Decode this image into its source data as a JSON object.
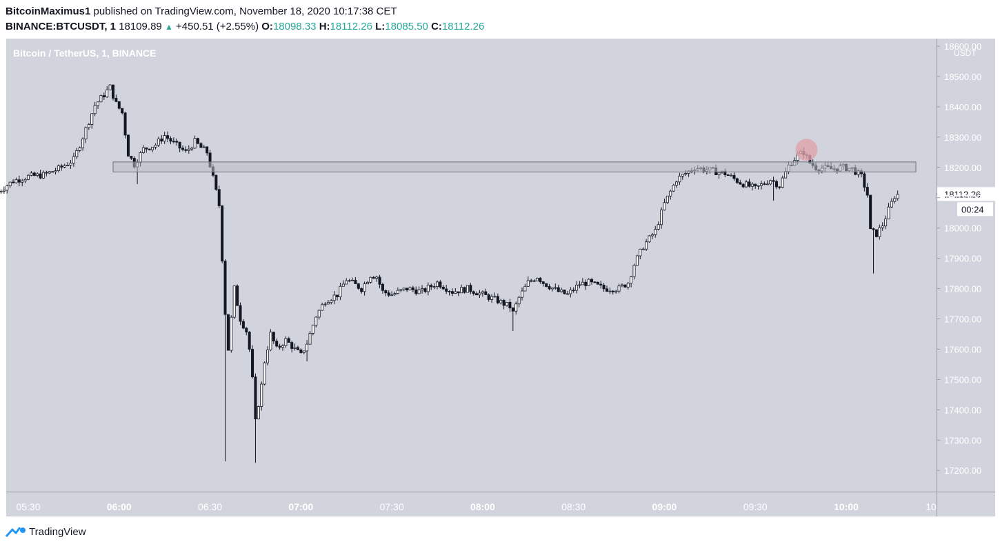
{
  "header": {
    "author": "BitcoinMaximus1",
    "published_text": "published on TradingView.com, November 18, 2020 10:17:38 CET",
    "symbol": "BINANCE:BTCUSDT, 1",
    "last": "18109.89",
    "change": "+450.51 (+2.55%)",
    "o_label": "O:",
    "o_value": "18098.33",
    "h_label": "H:",
    "h_value": "18112.26",
    "l_label": "L:",
    "l_value": "18085.50",
    "c_label": "C:",
    "c_value": "18112.26"
  },
  "footer": {
    "brand": "TradingView"
  },
  "colors": {
    "plot_bg": "#d1d4dc",
    "candle": "#131722",
    "zone_fill": "#b9bcc4",
    "marker": "#e0a3ad"
  },
  "chart_data": {
    "type": "candlestick",
    "title": "Bitcoin / TetherUS, 1, BINANCE",
    "y_unit": "USDT",
    "y_ticks": [
      "17200.00",
      "17300.00",
      "17400.00",
      "17500.00",
      "17600.00",
      "17700.00",
      "17800.00",
      "17900.00",
      "18000.00",
      "18100.00",
      "18200.00",
      "18300.00",
      "18400.00",
      "18500.00",
      "18600.00"
    ],
    "x_ticks": [
      "05:30",
      "06:00",
      "06:30",
      "07:00",
      "07:30",
      "08:00",
      "08:30",
      "09:00",
      "09:30",
      "10:00",
      "10"
    ],
    "ylim": [
      17130,
      18625
    ],
    "current_price": "18112.26",
    "countdown": "00:24",
    "zone": {
      "from_time": "05:58",
      "to_time": "10:23",
      "low": 18185,
      "high": 18218
    },
    "marker": {
      "time": "09:46",
      "price": 18258
    },
    "anchors": [
      [
        "05:20",
        18120
      ],
      [
        "05:25",
        18155
      ],
      [
        "05:30",
        18170
      ],
      [
        "05:35",
        18175
      ],
      [
        "05:40",
        18195
      ],
      [
        "05:45",
        18225
      ],
      [
        "05:48",
        18300
      ],
      [
        "05:52",
        18405
      ],
      [
        "05:55",
        18440
      ],
      [
        "05:57",
        18465
      ],
      [
        "05:59",
        18410
      ],
      [
        "06:01",
        18380
      ],
      [
        "06:03",
        18245
      ],
      [
        "06:05",
        18210
      ],
      [
        "06:08",
        18260
      ],
      [
        "06:12",
        18275
      ],
      [
        "06:15",
        18305
      ],
      [
        "06:18",
        18280
      ],
      [
        "06:22",
        18250
      ],
      [
        "06:25",
        18285
      ],
      [
        "06:27",
        18265
      ],
      [
        "06:29",
        18250
      ],
      [
        "06:31",
        18165
      ],
      [
        "06:33",
        18075
      ],
      [
        "06:34",
        17900
      ],
      [
        "06:35",
        17720
      ],
      [
        "06:36",
        17600
      ],
      [
        "06:38",
        17800
      ],
      [
        "06:40",
        17700
      ],
      [
        "06:42",
        17660
      ],
      [
        "06:43",
        17600
      ],
      [
        "06:44",
        17500
      ],
      [
        "06:45",
        17360
      ],
      [
        "06:47",
        17480
      ],
      [
        "06:48",
        17560
      ],
      [
        "06:50",
        17650
      ],
      [
        "06:52",
        17600
      ],
      [
        "06:55",
        17630
      ],
      [
        "06:58",
        17600
      ],
      [
        "07:00",
        17580
      ],
      [
        "07:02",
        17620
      ],
      [
        "07:05",
        17710
      ],
      [
        "07:08",
        17760
      ],
      [
        "07:12",
        17780
      ],
      [
        "07:15",
        17830
      ],
      [
        "07:20",
        17800
      ],
      [
        "07:23",
        17845
      ],
      [
        "07:25",
        17840
      ],
      [
        "07:27",
        17790
      ],
      [
        "07:30",
        17780
      ],
      [
        "07:35",
        17800
      ],
      [
        "07:40",
        17790
      ],
      [
        "07:45",
        17820
      ],
      [
        "07:50",
        17790
      ],
      [
        "07:55",
        17800
      ],
      [
        "08:00",
        17780
      ],
      [
        "08:05",
        17760
      ],
      [
        "08:09",
        17740
      ],
      [
        "08:10",
        17720
      ],
      [
        "08:12",
        17770
      ],
      [
        "08:15",
        17820
      ],
      [
        "08:18",
        17840
      ],
      [
        "08:20",
        17820
      ],
      [
        "08:25",
        17790
      ],
      [
        "08:28",
        17780
      ],
      [
        "08:32",
        17815
      ],
      [
        "08:35",
        17820
      ],
      [
        "08:40",
        17800
      ],
      [
        "08:45",
        17800
      ],
      [
        "08:48",
        17820
      ],
      [
        "08:50",
        17880
      ],
      [
        "08:53",
        17940
      ],
      [
        "08:57",
        17990
      ],
      [
        "09:00",
        18080
      ],
      [
        "09:04",
        18160
      ],
      [
        "09:07",
        18180
      ],
      [
        "09:10",
        18200
      ],
      [
        "09:15",
        18190
      ],
      [
        "09:20",
        18180
      ],
      [
        "09:25",
        18150
      ],
      [
        "09:30",
        18130
      ],
      [
        "09:35",
        18160
      ],
      [
        "09:38",
        18140
      ],
      [
        "09:41",
        18205
      ],
      [
        "09:44",
        18240
      ],
      [
        "09:46",
        18250
      ],
      [
        "09:48",
        18215
      ],
      [
        "09:50",
        18200
      ],
      [
        "09:55",
        18195
      ],
      [
        "09:59",
        18200
      ],
      [
        "10:02",
        18195
      ],
      [
        "10:05",
        18170
      ],
      [
        "10:07",
        18110
      ],
      [
        "10:08",
        17990
      ],
      [
        "10:10",
        17980
      ],
      [
        "10:12",
        18010
      ],
      [
        "10:14",
        18060
      ],
      [
        "10:16",
        18105
      ],
      [
        "10:17",
        18110
      ]
    ],
    "spikes": [
      [
        "06:06",
        18145
      ],
      [
        "06:35",
        17230
      ],
      [
        "06:45",
        17225
      ],
      [
        "06:34",
        18010
      ],
      [
        "07:02",
        17560
      ],
      [
        "08:10",
        17660
      ],
      [
        "09:36",
        18090
      ],
      [
        "10:09",
        17850
      ]
    ]
  }
}
